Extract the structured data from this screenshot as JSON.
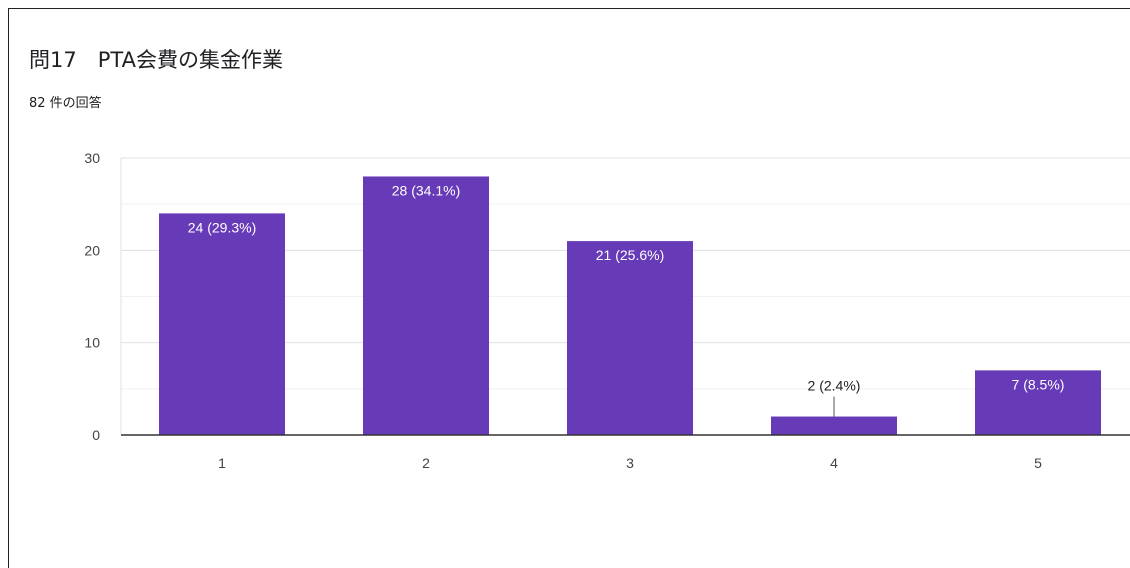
{
  "title": "問17　PTA会費の集金作業",
  "subtitle": "82 件の回答",
  "colors": {
    "bar": "#673ab7",
    "label_inside": "#ffffff",
    "label_outside": "#202124",
    "grid": "#ebebeb",
    "axis": "#333333"
  },
  "chart_data": {
    "type": "bar",
    "categories": [
      "1",
      "2",
      "3",
      "4",
      "5"
    ],
    "values": [
      24,
      28,
      21,
      2,
      7
    ],
    "data_labels": [
      "24 (29.3%)",
      "28 (34.1%)",
      "21 (25.6%)",
      "2 (2.4%)",
      "7 (8.5%)"
    ],
    "ylim": [
      0,
      30
    ],
    "yticks": [
      0,
      10,
      20,
      30
    ],
    "grid": true,
    "legend": "none"
  }
}
